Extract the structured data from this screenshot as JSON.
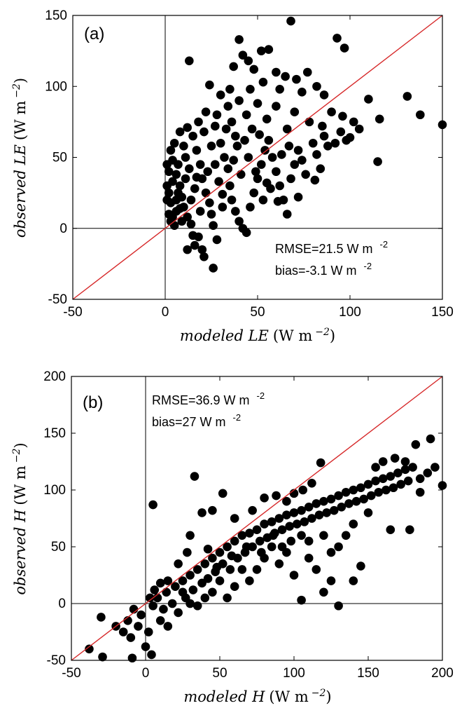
{
  "chart_data": [
    {
      "type": "scatter",
      "panel_label": "(a)",
      "xlabel": {
        "italic": "modeled LE",
        "unit": "(W m",
        "exp": "−2",
        "close": ")"
      },
      "ylabel": {
        "italic": "observed LE",
        "unit": "(W m",
        "exp": "−2",
        "close": ")"
      },
      "xlim": [
        -50,
        150
      ],
      "ylim": [
        -50,
        150
      ],
      "xticks": [
        -50,
        0,
        50,
        100,
        150
      ],
      "yticks": [
        -50,
        0,
        50,
        100,
        150
      ],
      "reference_lines": [
        "x=0",
        "y=0",
        "1:1 line (red)"
      ],
      "one_to_one_color": "#d62728",
      "marker_color": "#000000",
      "annotations": [
        {
          "text": "RMSE=21.5 W m",
          "sup": "-2"
        },
        {
          "text": "bias=-3.1 W m",
          "sup": "-2"
        }
      ],
      "points_note": "dense cloud of roughly 700 points, concentrated at modeled 0–40, observed 0–60; representative points listed",
      "points": [
        [
          13,
          118
        ],
        [
          40,
          133
        ],
        [
          68,
          146
        ],
        [
          93,
          134
        ],
        [
          97,
          127
        ],
        [
          42,
          122
        ],
        [
          45,
          118
        ],
        [
          52,
          125
        ],
        [
          56,
          126
        ],
        [
          37,
          114
        ],
        [
          48,
          112
        ],
        [
          60,
          110
        ],
        [
          65,
          107
        ],
        [
          71,
          105
        ],
        [
          77,
          110
        ],
        [
          82,
          100
        ],
        [
          24,
          101
        ],
        [
          30,
          94
        ],
        [
          35,
          98
        ],
        [
          46,
          98
        ],
        [
          53,
          103
        ],
        [
          62,
          98
        ],
        [
          74,
          96
        ],
        [
          86,
          94
        ],
        [
          110,
          91
        ],
        [
          131,
          93
        ],
        [
          138,
          80
        ],
        [
          150,
          73
        ],
        [
          116,
          77
        ],
        [
          115,
          47
        ],
        [
          105,
          70
        ],
        [
          96,
          79
        ],
        [
          90,
          82
        ],
        [
          85,
          72
        ],
        [
          78,
          75
        ],
        [
          70,
          82
        ],
        [
          66,
          70
        ],
        [
          60,
          86
        ],
        [
          55,
          77
        ],
        [
          50,
          88
        ],
        [
          44,
          80
        ],
        [
          40,
          90
        ],
        [
          34,
          86
        ],
        [
          28,
          80
        ],
        [
          22,
          82
        ],
        [
          18,
          75
        ],
        [
          12,
          71
        ],
        [
          8,
          68
        ],
        [
          5,
          60
        ],
        [
          3,
          55
        ],
        [
          2,
          40
        ],
        [
          1,
          30
        ],
        [
          1,
          20
        ],
        [
          2,
          10
        ],
        [
          3,
          5
        ],
        [
          1,
          45
        ],
        [
          4,
          48
        ],
        [
          6,
          38
        ],
        [
          8,
          30
        ],
        [
          9,
          22
        ],
        [
          10,
          15
        ],
        [
          12,
          8
        ],
        [
          14,
          3
        ],
        [
          15,
          -5
        ],
        [
          17,
          55
        ],
        [
          19,
          45
        ],
        [
          20,
          35
        ],
        [
          22,
          25
        ],
        [
          24,
          18
        ],
        [
          25,
          10
        ],
        [
          26,
          2
        ],
        [
          28,
          -8
        ],
        [
          26,
          -28
        ],
        [
          21,
          -20
        ],
        [
          20,
          -15
        ],
        [
          16,
          -12
        ],
        [
          12,
          -15
        ],
        [
          18,
          -6
        ],
        [
          30,
          60
        ],
        [
          32,
          50
        ],
        [
          34,
          42
        ],
        [
          35,
          30
        ],
        [
          36,
          20
        ],
        [
          38,
          12
        ],
        [
          40,
          5
        ],
        [
          42,
          0
        ],
        [
          44,
          -3
        ],
        [
          46,
          15
        ],
        [
          48,
          25
        ],
        [
          50,
          35
        ],
        [
          52,
          45
        ],
        [
          54,
          55
        ],
        [
          56,
          62
        ],
        [
          58,
          50
        ],
        [
          60,
          40
        ],
        [
          62,
          30
        ],
        [
          64,
          20
        ],
        [
          66,
          10
        ],
        [
          68,
          35
        ],
        [
          70,
          45
        ],
        [
          72,
          55
        ],
        [
          74,
          48
        ],
        [
          76,
          38
        ],
        [
          80,
          60
        ],
        [
          82,
          52
        ],
        [
          84,
          42
        ],
        [
          86,
          65
        ],
        [
          88,
          58
        ],
        [
          92,
          60
        ],
        [
          95,
          68
        ],
        [
          98,
          62
        ],
        [
          100,
          64
        ],
        [
          102,
          75
        ],
        [
          72,
          22
        ],
        [
          81,
          34
        ],
        [
          61,
          19
        ],
        [
          55,
          32
        ],
        [
          15,
          65
        ],
        [
          21,
          68
        ],
        [
          27,
          72
        ],
        [
          33,
          70
        ],
        [
          38,
          65
        ],
        [
          43,
          62
        ],
        [
          47,
          70
        ],
        [
          51,
          66
        ],
        [
          7,
          25
        ],
        [
          11,
          35
        ],
        [
          13,
          42
        ],
        [
          16,
          28
        ],
        [
          23,
          40
        ],
        [
          29,
          33
        ],
        [
          31,
          24
        ],
        [
          37,
          48
        ],
        [
          41,
          38
        ],
        [
          6,
          12
        ],
        [
          9,
          5
        ],
        [
          3,
          18
        ],
        [
          2,
          25
        ],
        [
          4,
          33
        ],
        [
          5,
          2
        ],
        [
          11,
          50
        ],
        [
          14,
          20
        ],
        [
          19,
          12
        ],
        [
          27,
          45
        ],
        [
          31,
          15
        ],
        [
          39,
          58
        ],
        [
          45,
          50
        ],
        [
          49,
          40
        ],
        [
          53,
          20
        ],
        [
          57,
          28
        ],
        [
          63,
          52
        ],
        [
          67,
          58
        ],
        [
          36,
          75
        ],
        [
          25,
          58
        ],
        [
          17,
          36
        ],
        [
          10,
          58
        ],
        [
          7,
          45
        ],
        [
          4,
          8
        ],
        [
          6,
          20
        ],
        [
          8,
          14
        ]
      ]
    },
    {
      "type": "scatter",
      "panel_label": "(b)",
      "xlabel": {
        "italic": "modeled H",
        "unit": "(W m",
        "exp": "−2",
        "close": ")"
      },
      "ylabel": {
        "italic": "observed H",
        "unit": "(W m",
        "exp": "−2",
        "close": ")"
      },
      "xlim": [
        -50,
        200
      ],
      "ylim": [
        -50,
        200
      ],
      "xticks": [
        -50,
        0,
        50,
        100,
        150,
        200
      ],
      "yticks": [
        -50,
        0,
        50,
        100,
        150,
        200
      ],
      "reference_lines": [
        "x=0",
        "y=0",
        "1:1 line (red)"
      ],
      "one_to_one_color": "#d62728",
      "marker_color": "#000000",
      "annotations": [
        {
          "text": "RMSE=36.9 W m",
          "sup": "-2"
        },
        {
          "text": "bias=27 W m",
          "sup": "-2"
        }
      ],
      "points_note": "dense elongated cloud of roughly 800 points lying below the 1:1 line; representative points listed",
      "points": [
        [
          5,
          87
        ],
        [
          33,
          112
        ],
        [
          -38,
          -40
        ],
        [
          -29,
          -47
        ],
        [
          -9,
          -48
        ],
        [
          -30,
          -12
        ],
        [
          -20,
          -20
        ],
        [
          -15,
          -25
        ],
        [
          -12,
          -15
        ],
        [
          -10,
          -30
        ],
        [
          -8,
          -5
        ],
        [
          -5,
          -20
        ],
        [
          -3,
          -10
        ],
        [
          0,
          -38
        ],
        [
          2,
          -25
        ],
        [
          4,
          -45
        ],
        [
          5,
          -2
        ],
        [
          8,
          5
        ],
        [
          10,
          -15
        ],
        [
          12,
          -5
        ],
        [
          14,
          10
        ],
        [
          15,
          -20
        ],
        [
          18,
          0
        ],
        [
          20,
          15
        ],
        [
          22,
          -8
        ],
        [
          25,
          20
        ],
        [
          27,
          5
        ],
        [
          30,
          25
        ],
        [
          32,
          12
        ],
        [
          35,
          30
        ],
        [
          38,
          18
        ],
        [
          40,
          35
        ],
        [
          42,
          22
        ],
        [
          45,
          40
        ],
        [
          47,
          28
        ],
        [
          50,
          45
        ],
        [
          52,
          35
        ],
        [
          55,
          50
        ],
        [
          57,
          30
        ],
        [
          60,
          55
        ],
        [
          62,
          40
        ],
        [
          65,
          60
        ],
        [
          67,
          45
        ],
        [
          70,
          62
        ],
        [
          72,
          50
        ],
        [
          75,
          65
        ],
        [
          77,
          55
        ],
        [
          80,
          70
        ],
        [
          82,
          58
        ],
        [
          85,
          72
        ],
        [
          87,
          62
        ],
        [
          90,
          75
        ],
        [
          92,
          65
        ],
        [
          95,
          78
        ],
        [
          97,
          68
        ],
        [
          100,
          80
        ],
        [
          102,
          70
        ],
        [
          105,
          82
        ],
        [
          107,
          72
        ],
        [
          110,
          85
        ],
        [
          112,
          75
        ],
        [
          115,
          88
        ],
        [
          117,
          78
        ],
        [
          120,
          90
        ],
        [
          122,
          80
        ],
        [
          125,
          92
        ],
        [
          127,
          82
        ],
        [
          130,
          95
        ],
        [
          132,
          85
        ],
        [
          135,
          98
        ],
        [
          137,
          88
        ],
        [
          140,
          100
        ],
        [
          142,
          90
        ],
        [
          145,
          102
        ],
        [
          147,
          92
        ],
        [
          150,
          105
        ],
        [
          152,
          95
        ],
        [
          155,
          108
        ],
        [
          157,
          98
        ],
        [
          160,
          110
        ],
        [
          162,
          100
        ],
        [
          165,
          112
        ],
        [
          167,
          102
        ],
        [
          170,
          115
        ],
        [
          172,
          105
        ],
        [
          175,
          118
        ],
        [
          177,
          108
        ],
        [
          180,
          120
        ],
        [
          182,
          140
        ],
        [
          192,
          145
        ],
        [
          200,
          104
        ],
        [
          178,
          65
        ],
        [
          165,
          65
        ],
        [
          145,
          33
        ],
        [
          140,
          20
        ],
        [
          130,
          -2
        ],
        [
          105,
          3
        ],
        [
          120,
          10
        ],
        [
          125,
          20
        ],
        [
          115,
          30
        ],
        [
          110,
          40
        ],
        [
          100,
          25
        ],
        [
          95,
          45
        ],
        [
          90,
          35
        ],
        [
          85,
          50
        ],
        [
          80,
          40
        ],
        [
          75,
          30
        ],
        [
          70,
          20
        ],
        [
          65,
          30
        ],
        [
          60,
          15
        ],
        [
          55,
          5
        ],
        [
          50,
          20
        ],
        [
          45,
          10
        ],
        [
          40,
          5
        ],
        [
          35,
          -2
        ],
        [
          30,
          0
        ],
        [
          25,
          10
        ],
        [
          112,
          106
        ],
        [
          118,
          124
        ],
        [
          106,
          100
        ],
        [
          100,
          97
        ],
        [
          95,
          90
        ],
        [
          88,
          95
        ],
        [
          80,
          93
        ],
        [
          72,
          82
        ],
        [
          60,
          75
        ],
        [
          52,
          97
        ],
        [
          45,
          82
        ],
        [
          38,
          80
        ],
        [
          30,
          60
        ],
        [
          28,
          45
        ],
        [
          22,
          35
        ],
        [
          15,
          20
        ],
        [
          10,
          18
        ],
        [
          6,
          12
        ],
        [
          3,
          5
        ],
        [
          155,
          120
        ],
        [
          160,
          125
        ],
        [
          168,
          128
        ],
        [
          175,
          125
        ],
        [
          185,
          110
        ],
        [
          190,
          115
        ],
        [
          195,
          120
        ],
        [
          185,
          98
        ],
        [
          150,
          80
        ],
        [
          140,
          70
        ],
        [
          135,
          60
        ],
        [
          130,
          50
        ],
        [
          125,
          45
        ],
        [
          120,
          60
        ],
        [
          110,
          55
        ],
        [
          105,
          60
        ],
        [
          98,
          55
        ],
        [
          92,
          50
        ],
        [
          86,
          60
        ],
        [
          78,
          45
        ],
        [
          68,
          50
        ],
        [
          58,
          42
        ],
        [
          48,
          32
        ],
        [
          42,
          48
        ]
      ]
    }
  ]
}
